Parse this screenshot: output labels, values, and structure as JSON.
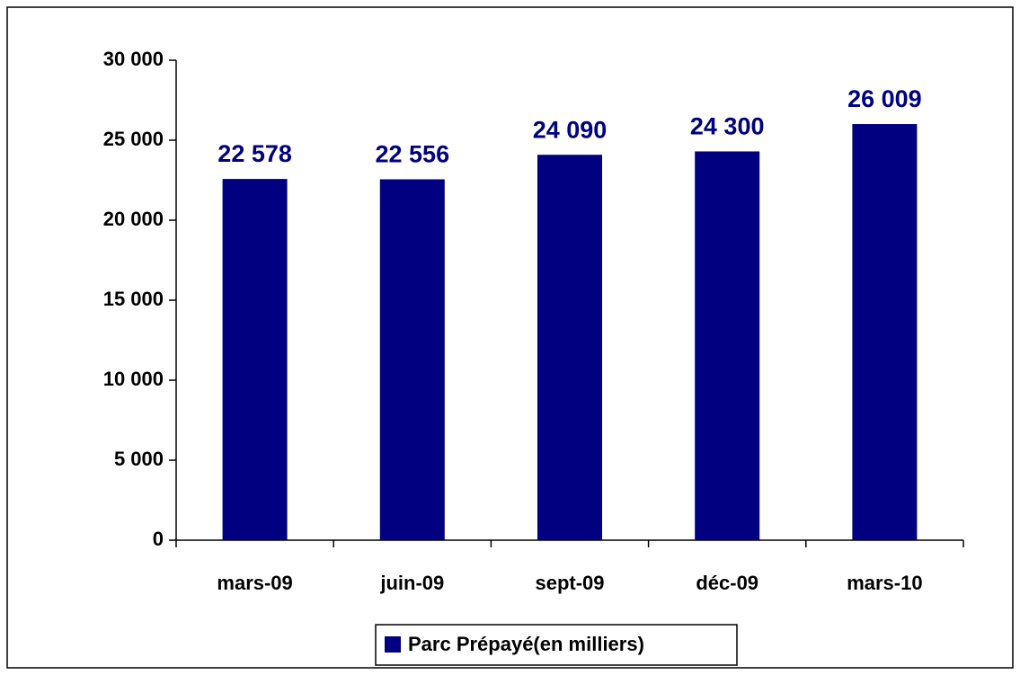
{
  "chart_data": {
    "type": "bar",
    "categories": [
      "mars-09",
      "juin-09",
      "sept-09",
      "déc-09",
      "mars-10"
    ],
    "series": [
      {
        "name": "Parc Prépayé(en milliers)",
        "color": "#000080",
        "values": [
          22578,
          22556,
          24090,
          24300,
          26009
        ],
        "value_labels": [
          "22 578",
          "22 556",
          "24 090",
          "24 300",
          "26 009"
        ]
      }
    ],
    "ylim": [
      0,
      30000
    ],
    "yticks": [
      0,
      {
        "value": 5000,
        "label": "5 000"
      },
      {
        "value": 10000,
        "label": "10 000"
      },
      {
        "value": 15000,
        "label": "15 000"
      },
      {
        "value": 20000,
        "label": "20 000"
      },
      {
        "value": 25000,
        "label": "25 000"
      },
      {
        "value": 30000,
        "label": "30 000"
      }
    ],
    "grid": false,
    "legend": "bottom"
  }
}
